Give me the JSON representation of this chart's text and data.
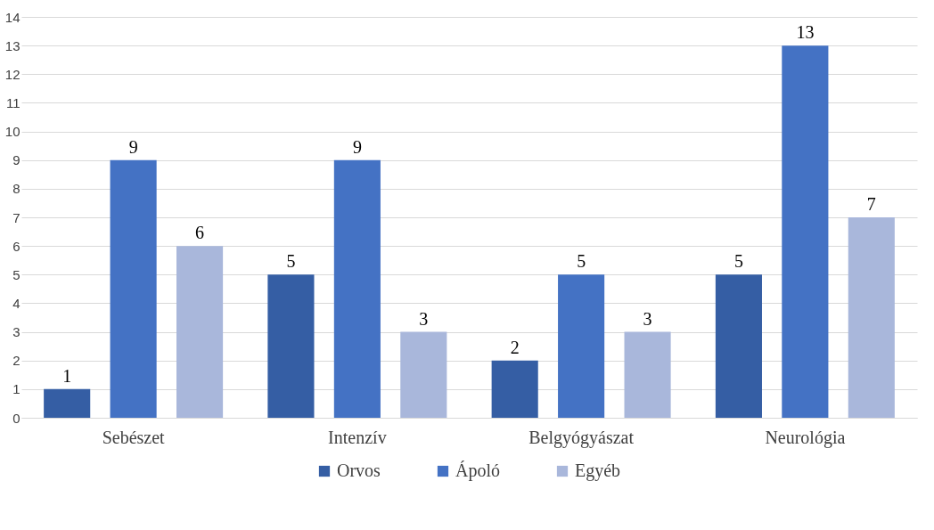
{
  "chart_data": {
    "type": "bar",
    "categories": [
      "Sebészet",
      "Intenzív",
      "Belgyógyászat",
      "Neurológia"
    ],
    "series": [
      {
        "name": "Orvos",
        "color": "#355ea4",
        "values": [
          1,
          5,
          2,
          5
        ]
      },
      {
        "name": "Ápoló",
        "color": "#4472c4",
        "values": [
          9,
          9,
          5,
          13
        ]
      },
      {
        "name": "Egyéb",
        "color": "#a9b7db",
        "values": [
          6,
          3,
          3,
          7
        ]
      }
    ],
    "ylim": [
      0,
      14
    ],
    "yticks": [
      0,
      1,
      2,
      3,
      4,
      5,
      6,
      7,
      8,
      9,
      10,
      11,
      12,
      13,
      14
    ],
    "grid": "y",
    "legend": "bottom",
    "data_labels": true
  }
}
